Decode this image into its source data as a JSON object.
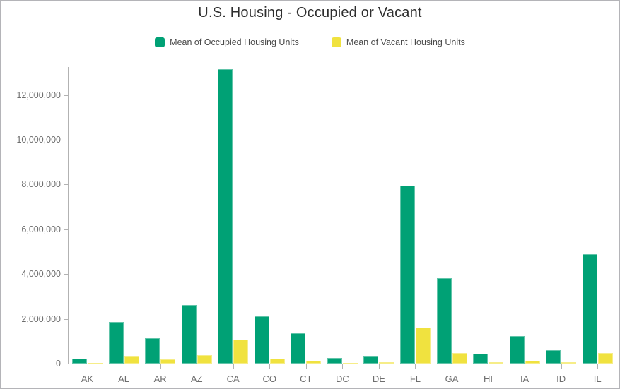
{
  "chart_data": {
    "type": "bar",
    "title": "U.S. Housing - Occupied or Vacant",
    "categories": [
      "AK",
      "AL",
      "AR",
      "AZ",
      "CA",
      "CO",
      "CT",
      "DC",
      "DE",
      "FL",
      "GA",
      "HI",
      "IA",
      "ID",
      "IL"
    ],
    "series": [
      {
        "name": "Mean of Occupied Housing Units",
        "key": "occupied",
        "color": "#00A175",
        "values": [
          215000,
          1860000,
          1150000,
          2620000,
          13150000,
          2100000,
          1370000,
          260000,
          335000,
          7950000,
          3820000,
          450000,
          1240000,
          610000,
          4890000
        ]
      },
      {
        "name": "Mean of Vacant Housing Units",
        "key": "vacant",
        "color": "#F0E23F",
        "values": [
          30000,
          355000,
          180000,
          370000,
          1060000,
          210000,
          115000,
          30000,
          60000,
          1600000,
          470000,
          75000,
          135000,
          75000,
          470000
        ]
      }
    ],
    "xlabel": "",
    "ylabel": "",
    "ylim": [
      0,
      13200000
    ],
    "ytick_interval": 2000000,
    "ytick_labels": [
      "0",
      "2,000,000",
      "4,000,000",
      "6,000,000",
      "8,000,000",
      "10,000,000",
      "12,000,000"
    ],
    "grid": false,
    "legend_position": "top",
    "axis_color": "#b2b2b2",
    "tick_label_color": "#6e6e6e",
    "title_color": "#2e2e2e"
  }
}
